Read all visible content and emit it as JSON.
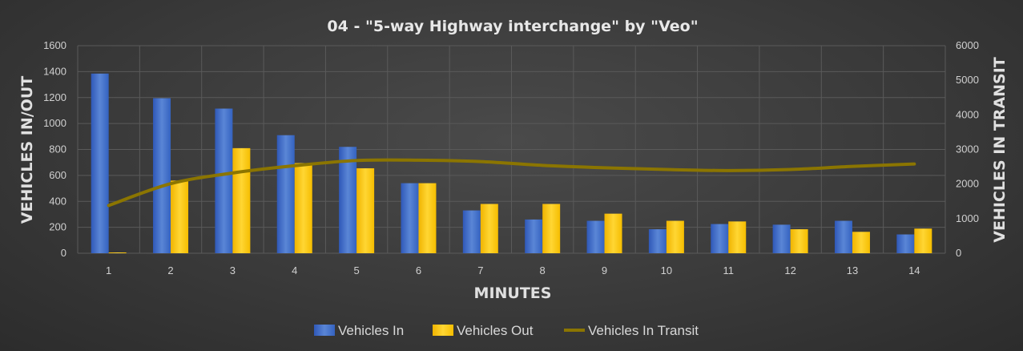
{
  "chart_data": {
    "type": "bar",
    "title": "04 - \"5-way Highway interchange\" by \"Veo\"",
    "xlabel": "MINUTES",
    "ylabel": "VEHICLES IN/OUT",
    "y2label": "VEHICLES IN TRANSIT",
    "categories": [
      "1",
      "2",
      "3",
      "4",
      "5",
      "6",
      "7",
      "8",
      "9",
      "10",
      "11",
      "12",
      "13",
      "14"
    ],
    "ylim": [
      0,
      1600
    ],
    "y2lim": [
      0,
      6000
    ],
    "yticks": [
      "0",
      "200",
      "400",
      "600",
      "800",
      "1000",
      "1200",
      "1400",
      "1600"
    ],
    "y2ticks": [
      "0",
      "1000",
      "2000",
      "3000",
      "4000",
      "5000",
      "6000"
    ],
    "grid": true,
    "legend_position": "bottom",
    "series": [
      {
        "name": "Vehicles In",
        "type": "bar",
        "axis": "left",
        "color": "#4472C4",
        "values": [
          1385,
          1195,
          1115,
          910,
          820,
          540,
          330,
          260,
          250,
          185,
          225,
          220,
          250,
          145
        ]
      },
      {
        "name": "Vehicles Out",
        "type": "bar",
        "axis": "left",
        "color": "#FFC000",
        "values": [
          5,
          560,
          810,
          695,
          655,
          540,
          380,
          380,
          305,
          250,
          245,
          185,
          165,
          190
        ]
      },
      {
        "name": "Vehicles In Transit",
        "type": "line",
        "axis": "right",
        "color": "#8B7500",
        "values": [
          1380,
          2010,
          2320,
          2530,
          2680,
          2690,
          2650,
          2540,
          2470,
          2420,
          2390,
          2420,
          2510,
          2580
        ]
      }
    ]
  }
}
